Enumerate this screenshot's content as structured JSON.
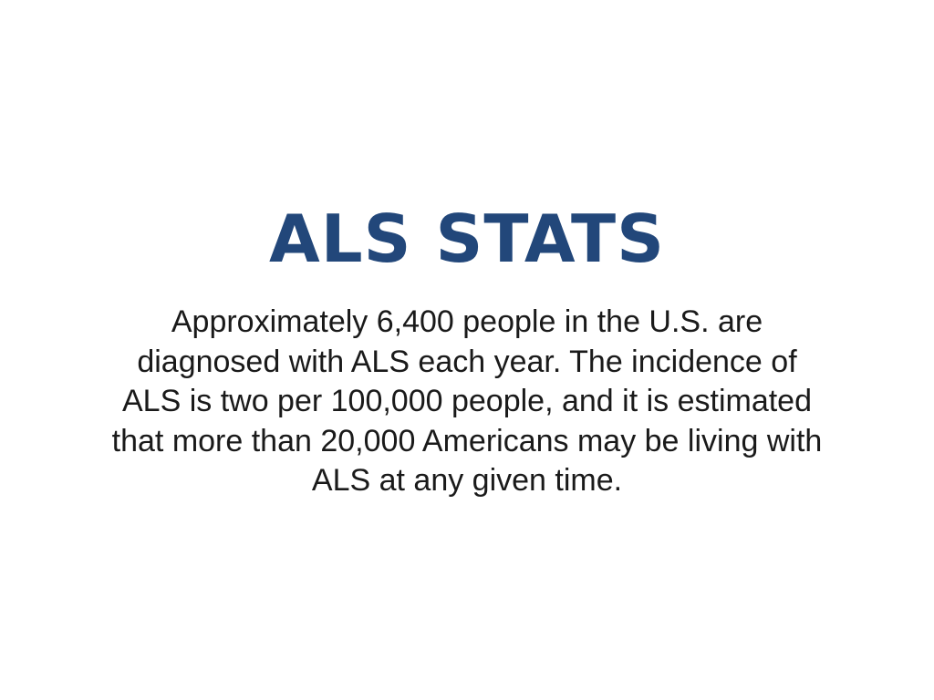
{
  "slide": {
    "title": "ALS STATS",
    "body_lines": [
      "Approximately 6,400 people in the U.S. are",
      "diagnosed with ALS each year. The incidence of",
      "ALS is two per 100,000 people, and it is estimated",
      "that more than 20,000 Americans may be living with",
      "ALS at any given time."
    ]
  },
  "colors": {
    "background": "#ffffff",
    "title": "#22477a",
    "body": "#1a1a1a"
  }
}
